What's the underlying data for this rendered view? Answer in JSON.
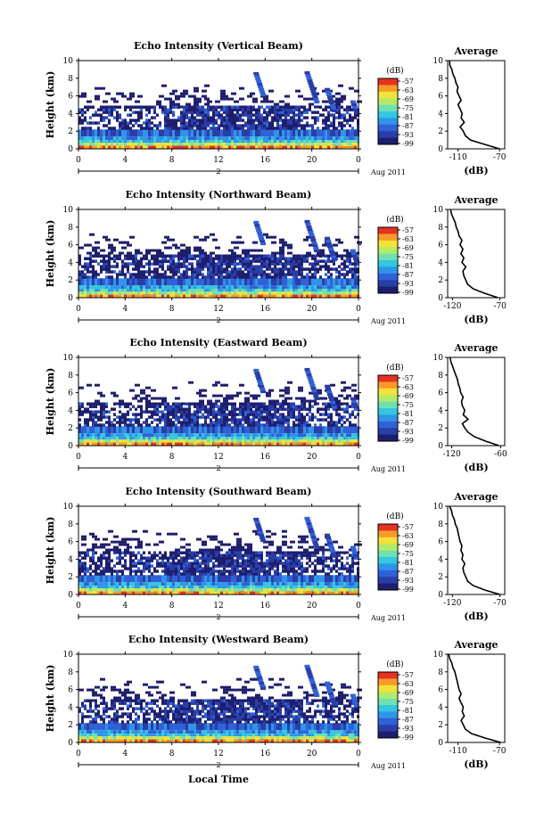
{
  "figure": {
    "xlabel": "Local Time",
    "date_label": "Aug 2011",
    "day_marker": "2"
  },
  "colors": {
    "bar_scale": [
      "#1e1e6e",
      "#2a3ea8",
      "#2f62d6",
      "#2f95e8",
      "#33c7e0",
      "#6fe0b0",
      "#b5ea66",
      "#f2e23a",
      "#f79a2a",
      "#e53222"
    ],
    "echo_dark": "#2a2f70",
    "echo_mid": "#3558c0",
    "echo_high": "#f28a2a"
  },
  "chart_data": [
    {
      "type": "heatmap",
      "title": "Echo Intensity (Vertical Beam)",
      "ylabel": "Height (km)",
      "xlim": [
        0,
        24
      ],
      "ylim": [
        0,
        10
      ],
      "xticks": [
        "0",
        "4",
        "8",
        "12",
        "16",
        "20",
        "0"
      ],
      "yticks": [
        "0",
        "2",
        "4",
        "6",
        "8",
        "10"
      ],
      "colorbar": {
        "label": "(dB)",
        "ticks": [
          "-57",
          "-63",
          "-69",
          "-75",
          "-81",
          "-87",
          "-93",
          "-99"
        ]
      },
      "profile": {
        "title": "Average",
        "xlabel": "(dB)",
        "xticks": [
          "-110",
          "-70"
        ],
        "xlim": [
          -120,
          -65
        ],
        "heights": [
          0,
          0.5,
          1,
          1.5,
          2,
          2.5,
          3,
          3.5,
          4,
          4.5,
          5,
          5.5,
          6,
          6.5,
          7,
          7.5,
          8,
          8.5,
          9,
          9.5,
          10
        ],
        "values": [
          -70,
          -84,
          -98,
          -103,
          -105,
          -108,
          -104,
          -107,
          -106,
          -108,
          -110,
          -107,
          -109,
          -111,
          -110,
          -112,
          -113,
          -115,
          -116,
          -118,
          -118
        ]
      }
    },
    {
      "type": "heatmap",
      "title": "Echo Intensity (Northward Beam)",
      "ylabel": "Height (km)",
      "xlim": [
        0,
        24
      ],
      "ylim": [
        0,
        10
      ],
      "xticks": [
        "0",
        "4",
        "8",
        "12",
        "16",
        "20",
        "0"
      ],
      "yticks": [
        "0",
        "2",
        "4",
        "6",
        "8",
        "10"
      ],
      "colorbar": {
        "label": "(dB)",
        "ticks": [
          "-57",
          "-63",
          "-69",
          "-75",
          "-81",
          "-87",
          "-93",
          "-99"
        ]
      },
      "profile": {
        "title": "Average",
        "xlabel": "(dB)",
        "xticks": [
          "-120",
          "-70"
        ],
        "xlim": [
          -125,
          -65
        ],
        "heights": [
          0,
          0.5,
          1,
          1.5,
          2,
          2.5,
          3,
          3.5,
          4,
          4.5,
          5,
          5.5,
          6,
          6.5,
          7,
          7.5,
          8,
          8.5,
          9,
          9.5,
          10
        ],
        "values": [
          -72,
          -86,
          -98,
          -104,
          -106,
          -108,
          -109,
          -106,
          -110,
          -108,
          -111,
          -109,
          -112,
          -110,
          -113,
          -114,
          -116,
          -117,
          -119,
          -121,
          -122
        ]
      }
    },
    {
      "type": "heatmap",
      "title": "Echo Intensity (Eastward Beam)",
      "ylabel": "Height (km)",
      "xlim": [
        0,
        24
      ],
      "ylim": [
        0,
        10
      ],
      "xticks": [
        "0",
        "4",
        "8",
        "12",
        "16",
        "20",
        "0"
      ],
      "yticks": [
        "0",
        "2",
        "4",
        "6",
        "8",
        "10"
      ],
      "colorbar": {
        "label": "(dB)",
        "ticks": [
          "-57",
          "-63",
          "-69",
          "-75",
          "-81",
          "-87",
          "-93",
          "-99"
        ]
      },
      "profile": {
        "title": "Average",
        "xlabel": "(dB)",
        "xticks": [
          "-120",
          "-60"
        ],
        "xlim": [
          -125,
          -55
        ],
        "heights": [
          0,
          0.5,
          1,
          1.5,
          2,
          2.5,
          3,
          3.5,
          4,
          4.5,
          5,
          5.5,
          6,
          6.5,
          7,
          7.5,
          8,
          8.5,
          9,
          9.5,
          10
        ],
        "values": [
          -62,
          -78,
          -92,
          -100,
          -104,
          -107,
          -100,
          -106,
          -104,
          -107,
          -108,
          -106,
          -109,
          -110,
          -112,
          -113,
          -115,
          -117,
          -119,
          -121,
          -122
        ]
      }
    },
    {
      "type": "heatmap",
      "title": "Echo Intensity (Southward Beam)",
      "ylabel": "Height (km)",
      "xlim": [
        0,
        24
      ],
      "ylim": [
        0,
        10
      ],
      "xticks": [
        "0",
        "4",
        "8",
        "12",
        "16",
        "20",
        "0"
      ],
      "yticks": [
        "0",
        "2",
        "4",
        "6",
        "8",
        "10"
      ],
      "colorbar": {
        "label": "(dB)",
        "ticks": [
          "-57",
          "-63",
          "-69",
          "-75",
          "-81",
          "-87",
          "-93",
          "-99"
        ]
      },
      "profile": {
        "title": "Average",
        "xlabel": "(dB)",
        "xticks": [
          "-120",
          "-70"
        ],
        "xlim": [
          -125,
          -65
        ],
        "heights": [
          0,
          0.5,
          1,
          1.5,
          2,
          2.5,
          3,
          3.5,
          4,
          4.5,
          5,
          5.5,
          6,
          6.5,
          7,
          7.5,
          8,
          8.5,
          9,
          9.5,
          10
        ],
        "values": [
          -70,
          -86,
          -98,
          -104,
          -106,
          -108,
          -109,
          -107,
          -110,
          -109,
          -111,
          -110,
          -112,
          -113,
          -114,
          -115,
          -117,
          -118,
          -120,
          -121,
          -123
        ]
      }
    },
    {
      "type": "heatmap",
      "title": "Echo Intensity (Westward Beam)",
      "ylabel": "Height (km)",
      "xlim": [
        0,
        24
      ],
      "ylim": [
        0,
        10
      ],
      "xticks": [
        "0",
        "4",
        "8",
        "12",
        "16",
        "20",
        "0"
      ],
      "yticks": [
        "0",
        "2",
        "4",
        "6",
        "8",
        "10"
      ],
      "colorbar": {
        "label": "(dB)",
        "ticks": [
          "-57",
          "-63",
          "-69",
          "-75",
          "-81",
          "-87",
          "-93",
          "-99"
        ]
      },
      "profile": {
        "title": "Average",
        "xlabel": "(dB)",
        "xticks": [
          "-110",
          "-70"
        ],
        "xlim": [
          -120,
          -65
        ],
        "heights": [
          0,
          0.5,
          1,
          1.5,
          2,
          2.5,
          3,
          3.5,
          4,
          4.5,
          5,
          5.5,
          6,
          6.5,
          7,
          7.5,
          8,
          8.5,
          9,
          9.5,
          10
        ],
        "values": [
          -69,
          -84,
          -97,
          -103,
          -105,
          -107,
          -104,
          -106,
          -105,
          -107,
          -109,
          -107,
          -109,
          -110,
          -111,
          -112,
          -113,
          -115,
          -116,
          -118,
          -119
        ]
      }
    }
  ]
}
